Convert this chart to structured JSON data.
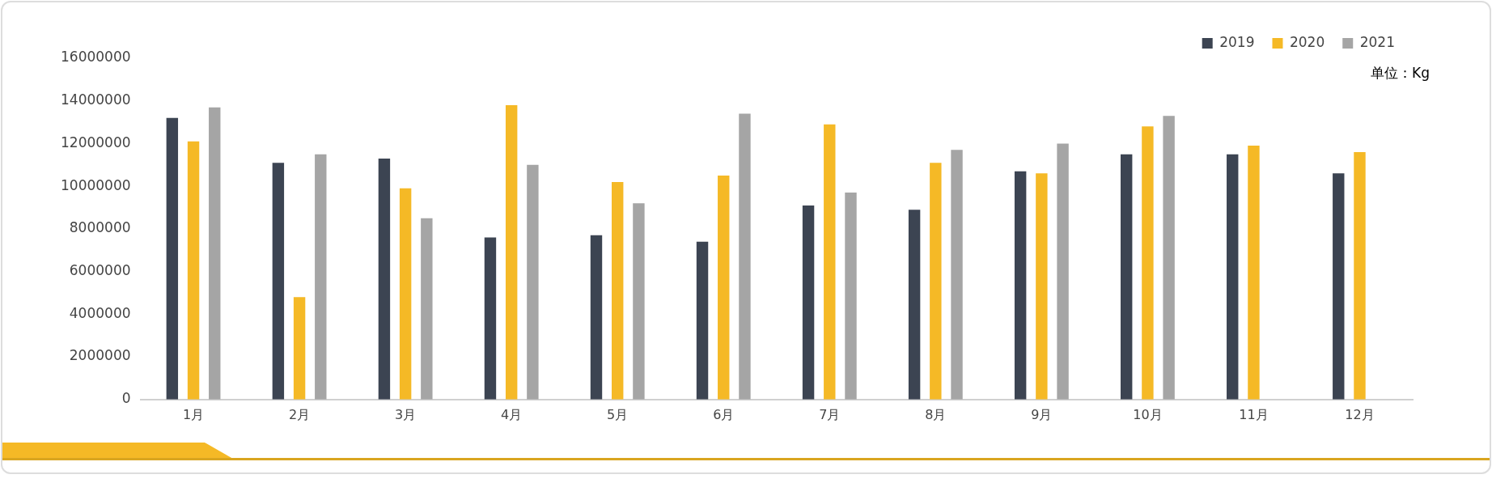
{
  "chart_data": {
    "type": "bar",
    "categories": [
      "1月",
      "2月",
      "3月",
      "4月",
      "5月",
      "6月",
      "7月",
      "8月",
      "9月",
      "10月",
      "11月",
      "12月"
    ],
    "series": [
      {
        "name": "2019",
        "color": "#3c4452",
        "values": [
          13200000,
          11100000,
          11300000,
          7600000,
          7700000,
          7400000,
          9100000,
          8900000,
          10700000,
          11500000,
          11500000,
          10600000
        ]
      },
      {
        "name": "2020",
        "color": "#f5b926",
        "values": [
          12100000,
          4800000,
          9900000,
          13800000,
          10200000,
          10500000,
          12900000,
          11100000,
          10600000,
          12800000,
          11900000,
          11600000
        ]
      },
      {
        "name": "2021",
        "color": "#a5a5a5",
        "values": [
          13700000,
          11500000,
          8500000,
          11000000,
          9200000,
          13400000,
          9700000,
          11700000,
          12000000,
          13300000,
          null,
          null
        ]
      }
    ],
    "ylim": [
      0,
      16000000
    ],
    "yticks": [
      0,
      2000000,
      4000000,
      6000000,
      8000000,
      10000000,
      12000000,
      14000000,
      16000000
    ],
    "grid": false,
    "legend": "top right",
    "annotations": [
      "单位：Kg"
    ]
  }
}
